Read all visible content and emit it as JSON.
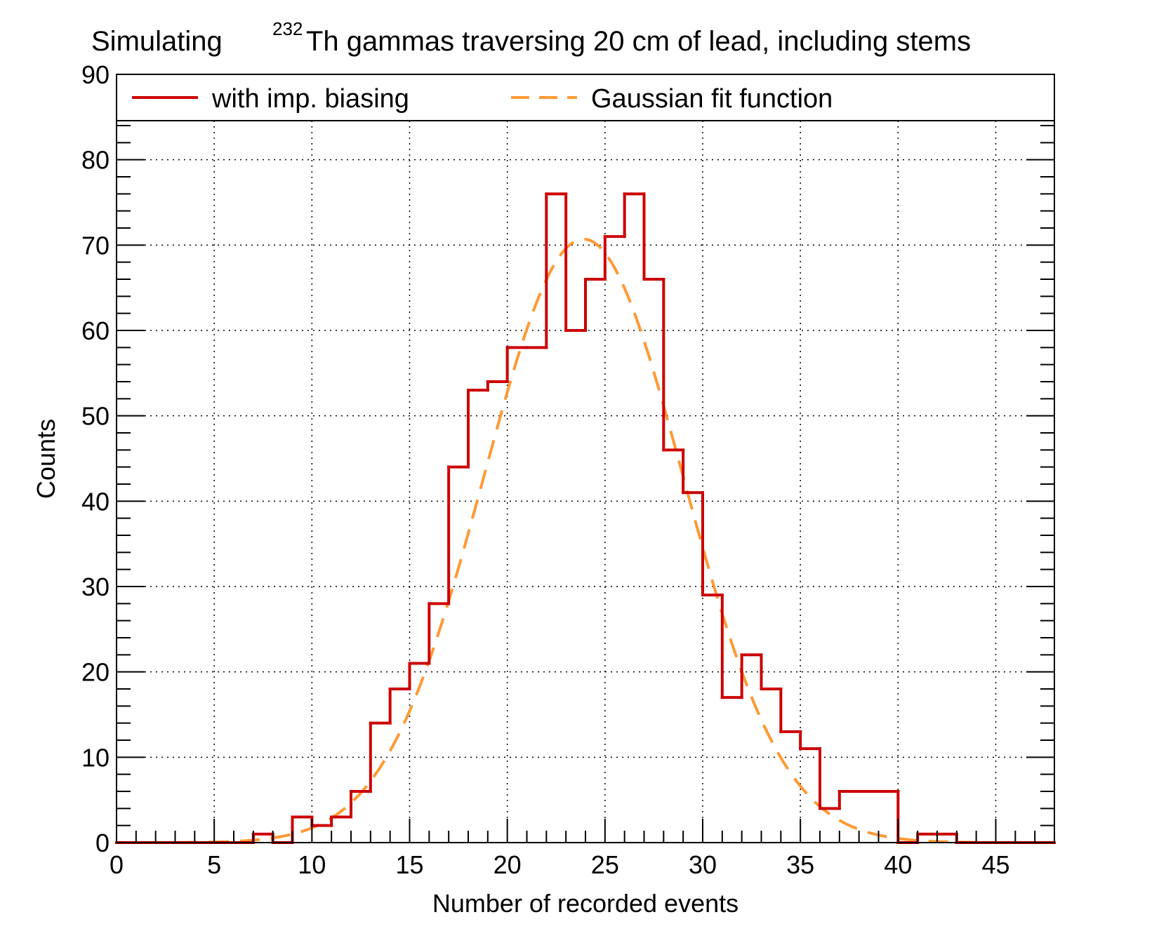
{
  "chart_data": {
    "type": "histogram",
    "title_prefix": "Simulating",
    "title_superscript": "232",
    "title_main": "Th gammas traversing 20 cm of lead, including stems",
    "xlabel": "Number of recorded events",
    "ylabel": "Counts",
    "xlim": [
      0,
      48
    ],
    "ylim": [
      0,
      90
    ],
    "x_ticks": [
      0,
      5,
      10,
      15,
      20,
      25,
      30,
      35,
      40,
      45
    ],
    "y_ticks": [
      0,
      10,
      20,
      30,
      40,
      50,
      60,
      70,
      80,
      90
    ],
    "grid": true,
    "legend_position": "top",
    "series": [
      {
        "name": "with imp. biasing",
        "style": "step",
        "color": "#cc0000",
        "bin_edges": [
          0,
          1,
          2,
          3,
          4,
          5,
          6,
          7,
          8,
          9,
          10,
          11,
          12,
          13,
          14,
          15,
          16,
          17,
          18,
          19,
          20,
          21,
          22,
          23,
          24,
          25,
          26,
          27,
          28,
          29,
          30,
          31,
          32,
          33,
          34,
          35,
          36,
          37,
          38,
          39,
          40,
          41,
          42,
          43,
          44,
          45,
          46,
          47,
          48
        ],
        "counts": [
          0,
          0,
          0,
          0,
          0,
          0,
          0,
          1,
          0,
          3,
          2,
          3,
          6,
          14,
          18,
          21,
          28,
          44,
          53,
          54,
          58,
          58,
          76,
          60,
          66,
          71,
          76,
          66,
          46,
          41,
          29,
          17,
          22,
          18,
          13,
          11,
          4,
          6,
          6,
          6,
          0,
          1,
          1,
          0,
          0,
          0,
          0,
          0
        ]
      },
      {
        "name": "Gaussian fit function",
        "style": "dashed",
        "color": "#ff9933",
        "amplitude": 70.7,
        "mean": 23.9,
        "sigma": 5.1
      }
    ]
  }
}
